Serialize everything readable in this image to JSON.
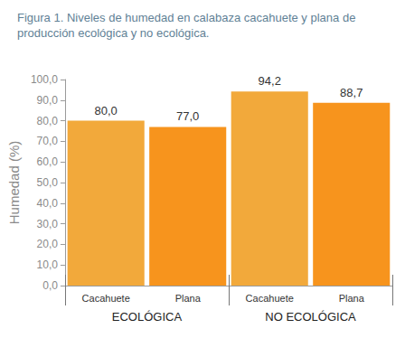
{
  "chart_data": {
    "type": "bar",
    "title": "Figura 1. Niveles de humedad en calabaza cacahuete y plana de producción ecológica y no ecológica.",
    "y_label": "Humedad (%)",
    "categories": [
      "Cacahuete",
      "Plana",
      "Cacahuete",
      "Plana"
    ],
    "groups": [
      "ECOLÓGICA",
      "NO ECOLÓGICA"
    ],
    "values": [
      80.0,
      77.0,
      94.2,
      88.7
    ],
    "value_labels": [
      "80,0",
      "77,0",
      "94,2",
      "88,7"
    ],
    "colors": [
      "#f2a93b",
      "#f7941d",
      "#f2a93b",
      "#f7941d"
    ],
    "ylim": [
      0,
      100
    ],
    "yticks": [
      {
        "value": 0,
        "label": "0,0"
      },
      {
        "value": 10,
        "label": "10,0"
      },
      {
        "value": 20,
        "label": "20,0"
      },
      {
        "value": 30,
        "label": "30,0"
      },
      {
        "value": 40,
        "label": "40,0"
      },
      {
        "value": 50,
        "label": "50,0"
      },
      {
        "value": 60,
        "label": "60,0"
      },
      {
        "value": 70,
        "label": "70,0"
      },
      {
        "value": 80,
        "label": "80,0"
      },
      {
        "value": 90,
        "label": "90,0"
      },
      {
        "value": 100,
        "label": "100,0"
      }
    ],
    "grid": false,
    "data_labels": true
  }
}
